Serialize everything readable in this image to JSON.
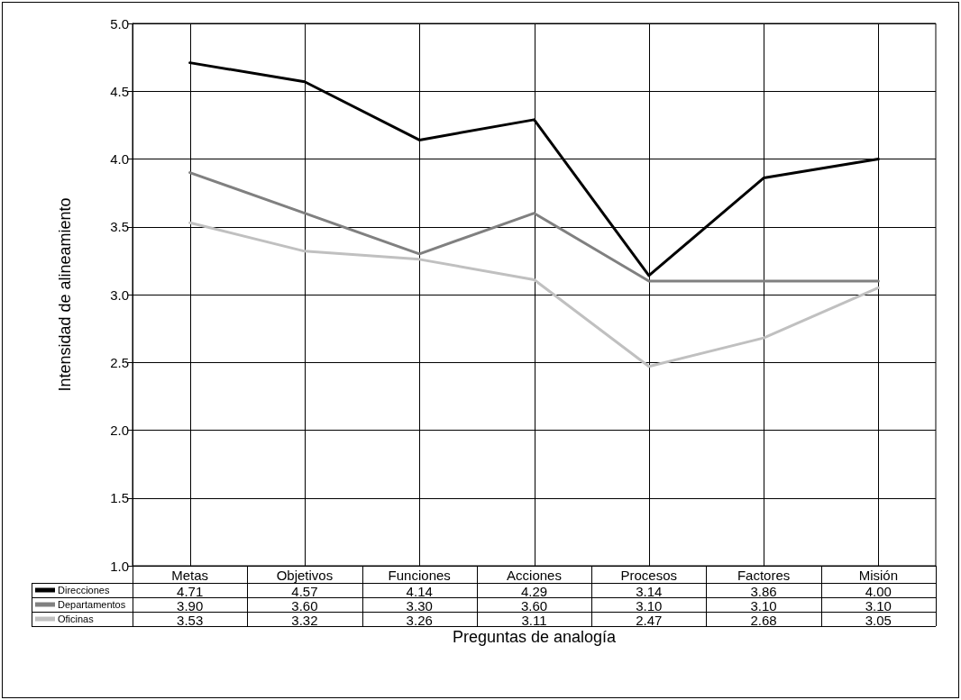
{
  "chart_data": {
    "type": "line",
    "xlabel": "Preguntas de analogía",
    "ylabel": "Intensidad de alineamiento",
    "categories": [
      "Metas",
      "Objetivos",
      "Funciones",
      "Acciones",
      "Procesos",
      "Factores",
      "Misión"
    ],
    "series": [
      {
        "name": "Direcciones",
        "color": "#000000",
        "values": [
          4.71,
          4.57,
          4.14,
          4.29,
          3.14,
          3.86,
          4.0
        ],
        "value_labels": [
          "4.71",
          "4.57",
          "4.14",
          "4.29",
          "3.14",
          "3.86",
          "4.00"
        ]
      },
      {
        "name": "Departamentos",
        "color": "#808080",
        "values": [
          3.9,
          3.6,
          3.3,
          3.6,
          3.1,
          3.1,
          3.1
        ],
        "value_labels": [
          "3.90",
          "3.60",
          "3.30",
          "3.60",
          "3.10",
          "3.10",
          "3.10"
        ]
      },
      {
        "name": "Oficinas",
        "color": "#c0c0c0",
        "values": [
          3.53,
          3.32,
          3.26,
          3.11,
          2.47,
          2.68,
          3.05
        ],
        "value_labels": [
          "3.53",
          "3.32",
          "3.26",
          "3.11",
          "2.47",
          "2.68",
          "3.05"
        ]
      }
    ],
    "ylim": [
      1,
      5
    ],
    "yticks": [
      {
        "value": 1,
        "label": "1.0"
      },
      {
        "value": 1.5,
        "label": "1.5"
      },
      {
        "value": 2,
        "label": "2.0"
      },
      {
        "value": 2.5,
        "label": "2.5"
      },
      {
        "value": 3,
        "label": "3.0"
      },
      {
        "value": 3.5,
        "label": "3.5"
      },
      {
        "value": 4,
        "label": "4.0"
      },
      {
        "value": 4.5,
        "label": "4.5"
      },
      {
        "value": 5,
        "label": "5.0"
      }
    ],
    "grid": true,
    "legend": "bottom left",
    "marker": "none",
    "line_style": "solid"
  }
}
